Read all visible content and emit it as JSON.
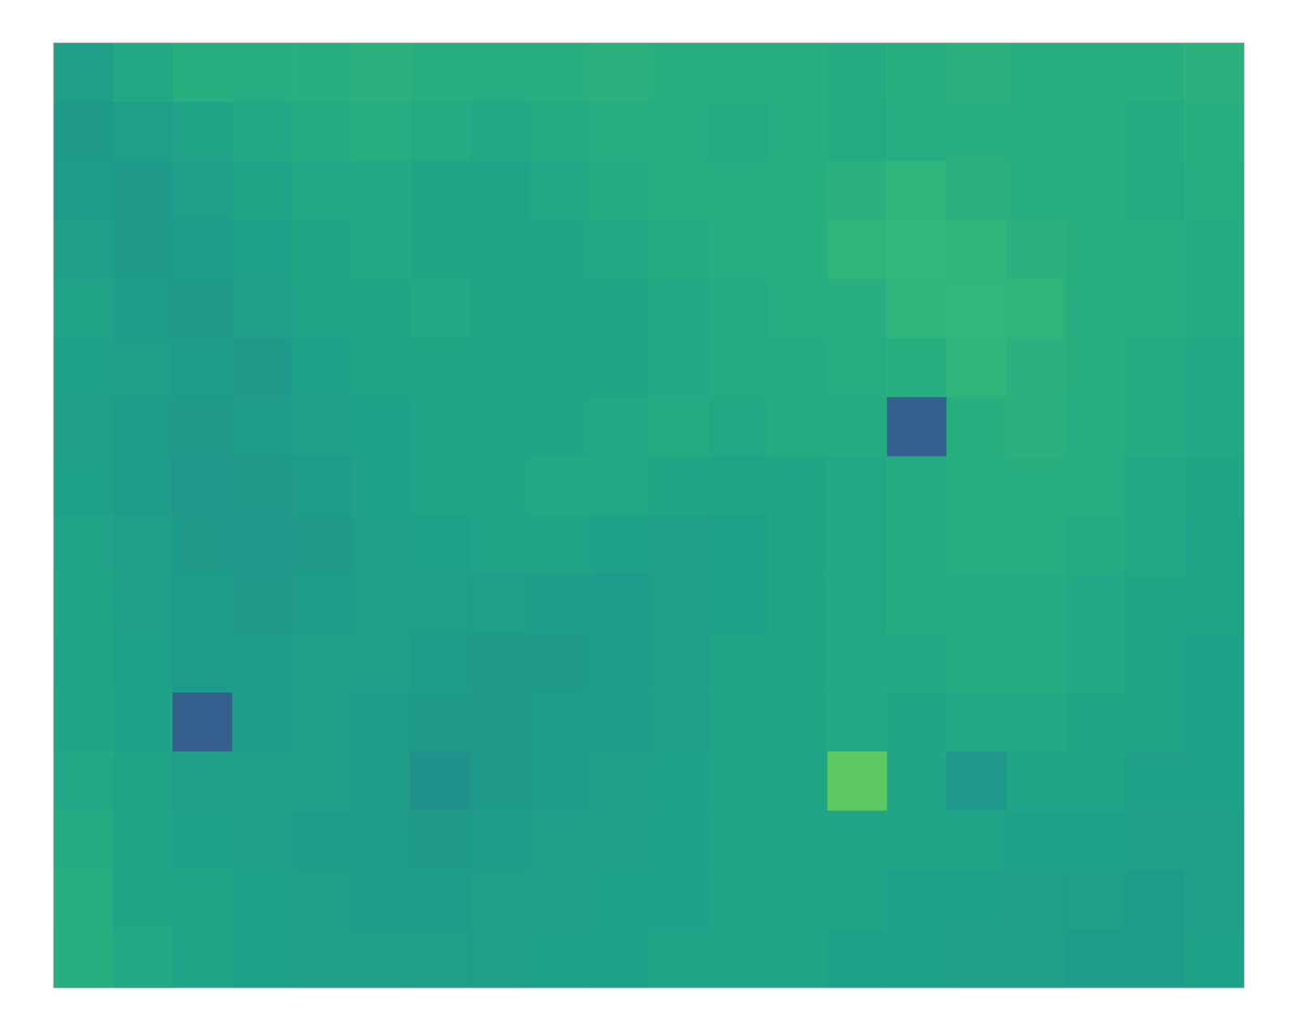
{
  "chart_data": {
    "type": "heatmap",
    "tick_labels": false,
    "xlim": [
      0,
      20
    ],
    "ylim": [
      0,
      16
    ],
    "color_range": [
      0,
      1
    ],
    "cells": [
      [
        0.56,
        0.6,
        0.63,
        0.62,
        0.63,
        0.64,
        0.63,
        0.62,
        0.63,
        0.64,
        0.63,
        0.62,
        0.63,
        0.61,
        0.63,
        0.64,
        0.63,
        0.62,
        0.63,
        0.64
      ],
      [
        0.54,
        0.56,
        0.58,
        0.6,
        0.61,
        0.62,
        0.61,
        0.6,
        0.61,
        0.62,
        0.62,
        0.61,
        0.62,
        0.61,
        0.62,
        0.63,
        0.63,
        0.62,
        0.61,
        0.63
      ],
      [
        0.55,
        0.54,
        0.56,
        0.58,
        0.6,
        0.6,
        0.59,
        0.58,
        0.6,
        0.61,
        0.62,
        0.62,
        0.63,
        0.64,
        0.65,
        0.64,
        0.63,
        0.62,
        0.61,
        0.62
      ],
      [
        0.56,
        0.54,
        0.55,
        0.57,
        0.59,
        0.6,
        0.59,
        0.58,
        0.59,
        0.6,
        0.61,
        0.62,
        0.63,
        0.65,
        0.66,
        0.65,
        0.64,
        0.63,
        0.62,
        0.61
      ],
      [
        0.58,
        0.55,
        0.54,
        0.56,
        0.58,
        0.59,
        0.6,
        0.59,
        0.58,
        0.59,
        0.6,
        0.61,
        0.62,
        0.63,
        0.65,
        0.66,
        0.65,
        0.63,
        0.62,
        0.61
      ],
      [
        0.57,
        0.56,
        0.55,
        0.54,
        0.57,
        0.58,
        0.59,
        0.58,
        0.58,
        0.59,
        0.6,
        0.61,
        0.61,
        0.62,
        0.63,
        0.65,
        0.64,
        0.63,
        0.61,
        0.6
      ],
      [
        0.56,
        0.55,
        0.54,
        0.55,
        0.56,
        0.57,
        0.58,
        0.58,
        0.59,
        0.6,
        0.61,
        0.6,
        0.61,
        0.61,
        0.3,
        0.63,
        0.64,
        0.62,
        0.61,
        0.6
      ],
      [
        0.57,
        0.55,
        0.53,
        0.54,
        0.55,
        0.57,
        0.58,
        0.59,
        0.6,
        0.6,
        0.59,
        0.58,
        0.59,
        0.6,
        0.61,
        0.62,
        0.63,
        0.62,
        0.6,
        0.59
      ],
      [
        0.58,
        0.56,
        0.54,
        0.53,
        0.54,
        0.56,
        0.57,
        0.58,
        0.58,
        0.57,
        0.56,
        0.57,
        0.59,
        0.6,
        0.61,
        0.62,
        0.62,
        0.61,
        0.6,
        0.58
      ],
      [
        0.59,
        0.56,
        0.55,
        0.54,
        0.55,
        0.56,
        0.56,
        0.56,
        0.55,
        0.55,
        0.56,
        0.57,
        0.59,
        0.6,
        0.61,
        0.61,
        0.61,
        0.6,
        0.59,
        0.58
      ],
      [
        0.58,
        0.57,
        0.55,
        0.55,
        0.56,
        0.56,
        0.55,
        0.54,
        0.54,
        0.55,
        0.56,
        0.58,
        0.59,
        0.6,
        0.6,
        0.61,
        0.61,
        0.6,
        0.58,
        0.57
      ],
      [
        0.59,
        0.57,
        0.3,
        0.55,
        0.56,
        0.55,
        0.54,
        0.54,
        0.55,
        0.55,
        0.56,
        0.58,
        0.59,
        0.6,
        0.59,
        0.6,
        0.6,
        0.59,
        0.58,
        0.57
      ],
      [
        0.6,
        0.58,
        0.56,
        0.56,
        0.56,
        0.55,
        0.5,
        0.54,
        0.55,
        0.56,
        0.57,
        0.58,
        0.59,
        0.75,
        0.59,
        0.53,
        0.58,
        0.58,
        0.57,
        0.57
      ],
      [
        0.61,
        0.58,
        0.57,
        0.56,
        0.55,
        0.55,
        0.54,
        0.55,
        0.56,
        0.56,
        0.57,
        0.58,
        0.58,
        0.59,
        0.58,
        0.58,
        0.57,
        0.57,
        0.56,
        0.56
      ],
      [
        0.62,
        0.59,
        0.58,
        0.57,
        0.56,
        0.55,
        0.55,
        0.56,
        0.56,
        0.57,
        0.57,
        0.58,
        0.58,
        0.58,
        0.57,
        0.57,
        0.56,
        0.56,
        0.55,
        0.56
      ],
      [
        0.63,
        0.6,
        0.58,
        0.57,
        0.56,
        0.56,
        0.56,
        0.56,
        0.57,
        0.57,
        0.58,
        0.58,
        0.58,
        0.57,
        0.57,
        0.56,
        0.56,
        0.55,
        0.55,
        0.57
      ]
    ]
  }
}
